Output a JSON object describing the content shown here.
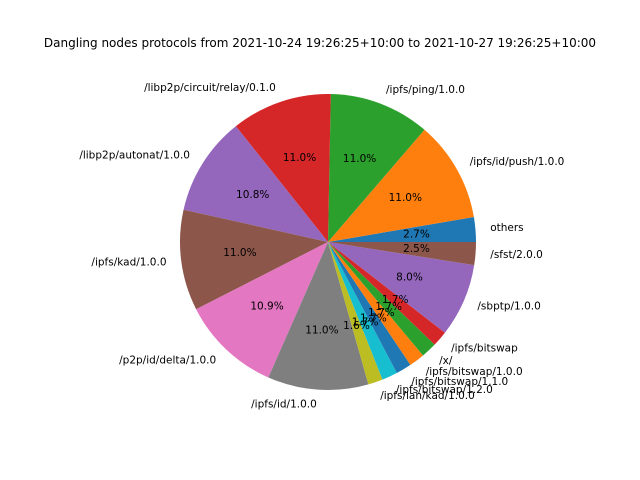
{
  "chart_data": {
    "type": "pie",
    "title": "Dangling nodes protocols from 2021-10-24 19:26:25+10:00 to 2021-10-27 19:26:25+10:00",
    "start_angle_deg": 0,
    "direction": "counterclockwise",
    "slices": [
      {
        "label": "others",
        "pct_label": "2.7%",
        "value": 2.7,
        "color": "#1f77b4"
      },
      {
        "label": "/ipfs/id/push/1.0.0",
        "pct_label": "11.0%",
        "value": 11.0,
        "color": "#ff7f0e"
      },
      {
        "label": "/ipfs/ping/1.0.0",
        "pct_label": "11.0%",
        "value": 11.0,
        "color": "#2ca02c"
      },
      {
        "label": "/libp2p/circuit/relay/0.1.0",
        "pct_label": "11.0%",
        "value": 11.0,
        "color": "#d62728"
      },
      {
        "label": "/libp2p/autonat/1.0.0",
        "pct_label": "10.8%",
        "value": 10.8,
        "color": "#9467bd"
      },
      {
        "label": "/ipfs/kad/1.0.0",
        "pct_label": "11.0%",
        "value": 11.0,
        "color": "#8c564b"
      },
      {
        "label": "/p2p/id/delta/1.0.0",
        "pct_label": "10.9%",
        "value": 10.9,
        "color": "#e377c2"
      },
      {
        "label": "/ipfs/id/1.0.0",
        "pct_label": "11.0%",
        "value": 11.0,
        "color": "#7f7f7f"
      },
      {
        "label": "/ipfs/lan/kad/1.0.0",
        "pct_label": "1.6%",
        "value": 1.6,
        "color": "#bcbd22"
      },
      {
        "label": "/ipfs/bitswap/1.2.0",
        "pct_label": "1.7%",
        "value": 1.7,
        "color": "#17becf"
      },
      {
        "label": "/ipfs/bitswap/1.1.0",
        "pct_label": "1.7%",
        "value": 1.7,
        "color": "#1f77b4"
      },
      {
        "label": "/ipfs/bitswap/1.0.0",
        "pct_label": "1.7%",
        "value": 1.7,
        "color": "#ff7f0e"
      },
      {
        "label": "/x/",
        "pct_label": "1.7%",
        "value": 1.7,
        "color": "#2ca02c"
      },
      {
        "label": "/ipfs/bitswap",
        "pct_label": "1.7%",
        "value": 1.7,
        "color": "#d62728"
      },
      {
        "label": "/sbptp/1.0.0",
        "pct_label": "8.0%",
        "value": 8.0,
        "color": "#9467bd"
      },
      {
        "label": "/sfst/2.0.0",
        "pct_label": "2.5%",
        "value": 2.5,
        "color": "#8c564b"
      }
    ]
  }
}
